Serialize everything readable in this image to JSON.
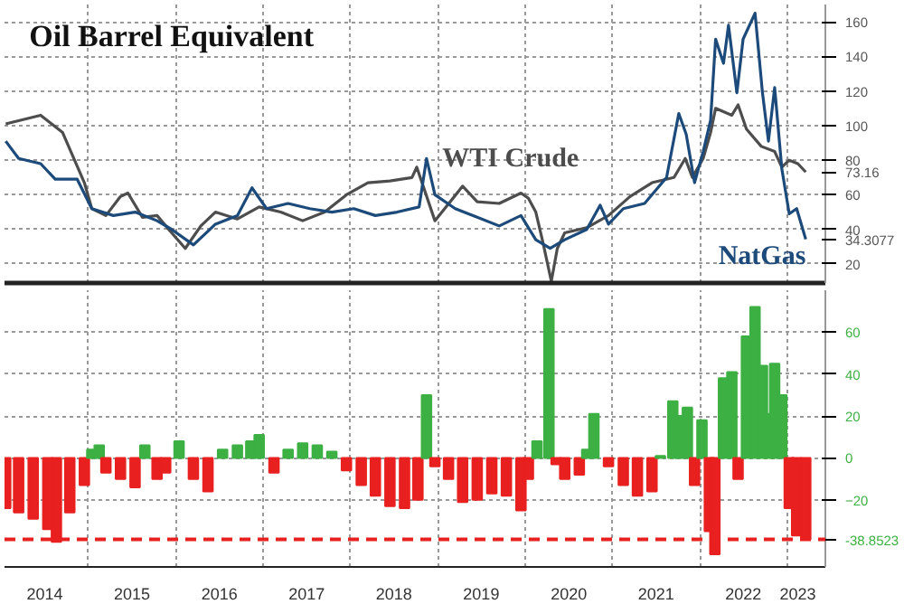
{
  "chart_data": [
    {
      "type": "line",
      "title": "Oil Barrel Equivalent",
      "xlim": [
        "2014-01-15",
        "2023-06-10"
      ],
      "xticks": [
        {
          "value": "2015-01-01",
          "label": null
        },
        {
          "value": "2016-01-01",
          "label": null
        },
        {
          "value": "2017-01-01",
          "label": null
        },
        {
          "value": "2018-01-01",
          "label": null
        },
        {
          "value": "2019-01-01",
          "label": null
        },
        {
          "value": "2020-01-01",
          "label": null
        },
        {
          "value": "2021-01-01",
          "label": null
        },
        {
          "value": "2022-01-01",
          "label": null
        },
        {
          "value": "2023-01-01",
          "label": null
        }
      ],
      "ylim": [
        9,
        170
      ],
      "yticks": [
        20,
        40,
        60,
        80,
        100,
        120,
        140,
        160,
        {
          "value": 73.16,
          "label": "73.16"
        },
        {
          "value": 34.3077,
          "label": "34.3077"
        }
      ],
      "grid": true,
      "tick_labels": "y",
      "series": [
        {
          "name": "WTI Crude",
          "color": "#4d4d4d",
          "x": [
            "2014-01-20",
            "2014-06-15",
            "2014-09-15",
            "2014-12-15",
            "2015-01-15",
            "2015-03-15",
            "2015-05-15",
            "2015-06-15",
            "2015-08-15",
            "2015-10-15",
            "2015-12-15",
            "2016-02-10",
            "2016-04-15",
            "2016-06-15",
            "2016-09-15",
            "2016-12-15",
            "2017-03-15",
            "2017-06-15",
            "2017-09-15",
            "2017-12-15",
            "2018-03-15",
            "2018-06-15",
            "2018-09-15",
            "2018-10-05",
            "2018-12-20",
            "2019-04-15",
            "2019-06-15",
            "2019-09-15",
            "2019-12-15",
            "2020-01-15",
            "2020-02-15",
            "2020-03-15",
            "2020-04-20",
            "2020-05-15",
            "2020-06-15",
            "2020-09-15",
            "2020-12-15",
            "2021-03-15",
            "2021-06-15",
            "2021-09-15",
            "2021-11-01",
            "2021-12-01",
            "2022-01-15",
            "2022-02-15",
            "2022-03-08",
            "2022-05-15",
            "2022-06-10",
            "2022-07-15",
            "2022-09-15",
            "2022-11-10",
            "2022-12-10",
            "2023-01-10",
            "2023-02-15",
            "2023-03-20"
          ],
          "values": [
            101,
            106,
            96,
            67,
            52,
            48,
            59,
            61,
            47,
            48,
            38,
            29,
            42,
            50,
            46,
            53,
            50,
            45,
            50,
            60,
            67,
            68,
            70,
            76,
            45,
            65,
            56,
            55,
            61,
            58,
            50,
            33,
            10,
            29,
            38,
            41,
            48,
            59,
            67,
            70,
            81,
            70,
            81,
            96,
            110,
            106,
            112,
            98,
            88,
            85,
            76,
            80,
            78,
            73.16
          ]
        },
        {
          "name": "NatGas",
          "color": "#1c4a7a",
          "x": [
            "2014-01-20",
            "2014-03-15",
            "2014-06-15",
            "2014-08-15",
            "2014-11-15",
            "2015-01-15",
            "2015-04-15",
            "2015-07-15",
            "2015-10-15",
            "2015-12-15",
            "2016-03-15",
            "2016-06-15",
            "2016-09-15",
            "2016-11-15",
            "2017-01-15",
            "2017-04-15",
            "2017-07-15",
            "2017-10-15",
            "2018-01-15",
            "2018-04-15",
            "2018-07-15",
            "2018-10-15",
            "2018-11-15",
            "2018-12-20",
            "2019-03-15",
            "2019-06-15",
            "2019-09-15",
            "2019-12-15",
            "2020-02-15",
            "2020-04-15",
            "2020-06-15",
            "2020-09-15",
            "2020-11-10",
            "2020-12-15",
            "2021-02-15",
            "2021-05-15",
            "2021-08-15",
            "2021-10-05",
            "2021-11-05",
            "2021-12-10",
            "2022-01-15",
            "2022-02-15",
            "2022-03-08",
            "2022-04-10",
            "2022-05-01",
            "2022-06-05",
            "2022-07-01",
            "2022-08-20",
            "2022-09-20",
            "2022-10-15",
            "2022-11-10",
            "2022-12-10",
            "2023-01-10",
            "2023-02-10",
            "2023-03-20"
          ],
          "values": [
            91,
            81,
            78,
            69,
            69,
            52,
            48,
            50,
            45,
            40,
            31,
            43,
            48,
            64,
            52,
            55,
            52,
            50,
            52,
            48,
            50,
            53,
            81,
            60,
            52,
            47,
            42,
            48,
            34,
            29,
            34,
            40,
            54,
            43,
            52,
            55,
            70,
            107,
            95,
            67,
            85,
            103,
            150,
            136,
            158,
            119,
            150,
            165,
            119,
            91,
            122,
            75,
            49,
            52,
            34.3077
          ]
        }
      ]
    },
    {
      "type": "bar",
      "xlim": [
        "2014-01-15",
        "2023-06-10"
      ],
      "xticks": [
        {
          "value": "2014-07-02",
          "label": "2014"
        },
        {
          "value": "2015-07-02",
          "label": "2015"
        },
        {
          "value": "2016-07-02",
          "label": "2016"
        },
        {
          "value": "2017-07-02",
          "label": "2017"
        },
        {
          "value": "2018-07-02",
          "label": "2018"
        },
        {
          "value": "2019-07-02",
          "label": "2019"
        },
        {
          "value": "2020-07-02",
          "label": "2020"
        },
        {
          "value": "2021-07-02",
          "label": "2021"
        },
        {
          "value": "2022-07-02",
          "label": "2022"
        },
        {
          "value": "2023-02-15",
          "label": "2023"
        },
        {
          "value": "2015-01-01",
          "label": null
        },
        {
          "value": "2016-01-01",
          "label": null
        },
        {
          "value": "2017-01-01",
          "label": null
        },
        {
          "value": "2018-01-01",
          "label": null
        },
        {
          "value": "2019-01-01",
          "label": null
        },
        {
          "value": "2020-01-01",
          "label": null
        },
        {
          "value": "2021-01-01",
          "label": null
        },
        {
          "value": "2022-01-01",
          "label": null
        },
        {
          "value": "2023-01-01",
          "label": null
        }
      ],
      "ylim": [
        -52,
        80
      ],
      "yticks": [
        -20,
        0,
        20,
        40,
        60
      ],
      "grid": true,
      "x": [
        "2014-01-20",
        "2014-03-15",
        "2014-05-15",
        "2014-07-15",
        "2014-08-20",
        "2014-10-15",
        "2014-12-15",
        "2015-01-15",
        "2015-02-15",
        "2015-03-15",
        "2015-05-15",
        "2015-07-15",
        "2015-08-25",
        "2015-10-15",
        "2015-11-20",
        "2016-01-15",
        "2016-03-15",
        "2016-05-15",
        "2016-07-15",
        "2016-09-15",
        "2016-11-10",
        "2016-12-15",
        "2017-02-15",
        "2017-04-15",
        "2017-06-15",
        "2017-08-15",
        "2017-10-15",
        "2017-12-15",
        "2018-02-15",
        "2018-04-15",
        "2018-06-15",
        "2018-08-15",
        "2018-10-10",
        "2018-11-15",
        "2018-12-20",
        "2019-02-15",
        "2019-04-15",
        "2019-06-15",
        "2019-08-15",
        "2019-10-15",
        "2019-12-15",
        "2020-01-15",
        "2020-02-20",
        "2020-04-10",
        "2020-05-10",
        "2020-06-15",
        "2020-08-15",
        "2020-09-15",
        "2020-10-15",
        "2020-12-15",
        "2021-02-15",
        "2021-04-15",
        "2021-06-15",
        "2021-07-20",
        "2021-09-10",
        "2021-10-10",
        "2021-11-10",
        "2021-12-10",
        "2022-01-10",
        "2022-02-10",
        "2022-03-05",
        "2022-04-10",
        "2022-05-15",
        "2022-06-10",
        "2022-07-15",
        "2022-08-20",
        "2022-09-20",
        "2022-10-15",
        "2022-11-10",
        "2022-12-10",
        "2023-01-10",
        "2023-02-10",
        "2023-03-20"
      ],
      "values": [
        -24,
        -26,
        -29,
        -34,
        -40,
        -26,
        -13,
        4,
        6,
        -7,
        -10,
        -14,
        6,
        -10,
        -7,
        8,
        -10,
        -16,
        4,
        6,
        8,
        11,
        -7,
        4,
        7,
        6,
        3,
        -6,
        -13,
        -18,
        -23,
        -24,
        -20,
        30,
        -4,
        -10,
        -21,
        -20,
        -17,
        -18,
        -25,
        -10,
        8,
        71,
        -3,
        -10,
        -8,
        4,
        21,
        -4,
        -13,
        -18,
        -16,
        1,
        27,
        20,
        24,
        -13,
        18,
        -35,
        -46,
        38,
        41,
        -10,
        58,
        72,
        44,
        21,
        45,
        30,
        -24,
        -37,
        -38.8523
      ],
      "colors": [
        "#e8201f",
        "#e8201f",
        "#e8201f",
        "#e8201f",
        "#e8201f",
        "#e8201f",
        "#e8201f",
        "#3cb043",
        "#3cb043",
        "#e8201f",
        "#e8201f",
        "#e8201f",
        "#3cb043",
        "#e8201f",
        "#e8201f",
        "#3cb043",
        "#e8201f",
        "#e8201f",
        "#3cb043",
        "#3cb043",
        "#3cb043",
        "#3cb043",
        "#e8201f",
        "#3cb043",
        "#3cb043",
        "#3cb043",
        "#3cb043",
        "#e8201f",
        "#e8201f",
        "#e8201f",
        "#e8201f",
        "#e8201f",
        "#e8201f",
        "#3cb043",
        "#e8201f",
        "#e8201f",
        "#e8201f",
        "#e8201f",
        "#e8201f",
        "#e8201f",
        "#e8201f",
        "#e8201f",
        "#3cb043",
        "#3cb043",
        "#e8201f",
        "#e8201f",
        "#e8201f",
        "#3cb043",
        "#3cb043",
        "#e8201f",
        "#e8201f",
        "#e8201f",
        "#e8201f",
        "#3cb043",
        "#3cb043",
        "#3cb043",
        "#3cb043",
        "#e8201f",
        "#3cb043",
        "#e8201f",
        "#e8201f",
        "#3cb043",
        "#3cb043",
        "#e8201f",
        "#3cb043",
        "#3cb043",
        "#3cb043",
        "#3cb043",
        "#3cb043",
        "#3cb043",
        "#e8201f",
        "#e8201f",
        "#e8201f"
      ],
      "ref_lines": [
        {
          "axis": "y",
          "value": -38.8523,
          "label": "-38.8523",
          "color": "#e8201f",
          "line_style": "dashed"
        }
      ]
    }
  ]
}
